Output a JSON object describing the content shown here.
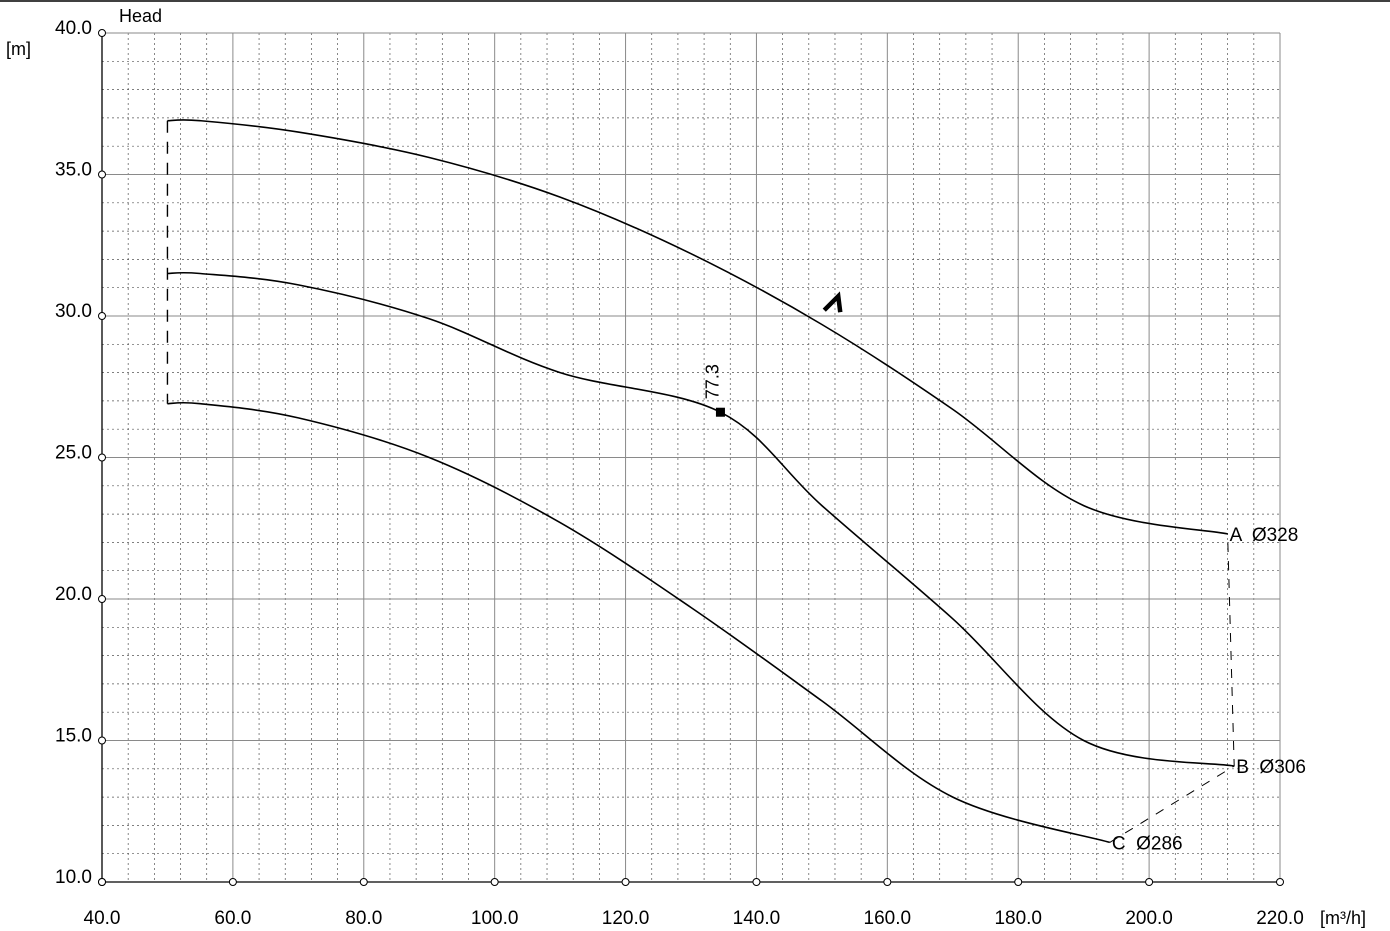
{
  "chart_data": {
    "type": "line",
    "title": "",
    "ylabel": "Head",
    "yunit": "[m]",
    "xunit": "[m³/h]",
    "xlim": [
      40,
      220
    ],
    "ylim": [
      10,
      40
    ],
    "x_ticks": [
      "40.0",
      "60.0",
      "80.0",
      "100.0",
      "120.0",
      "140.0",
      "160.0",
      "180.0",
      "200.0",
      "220.0"
    ],
    "y_ticks": [
      "10.0",
      "15.0",
      "20.0",
      "25.0",
      "30.0",
      "35.0",
      "40.0"
    ],
    "grid": true,
    "series": [
      {
        "name": "A",
        "label": "A  Ø328",
        "points": [
          [
            50,
            36.9
          ],
          [
            55,
            36.9
          ],
          [
            70,
            36.5
          ],
          [
            90,
            35.6
          ],
          [
            110,
            34.2
          ],
          [
            130,
            32.2
          ],
          [
            150,
            29.7
          ],
          [
            170,
            26.7
          ],
          [
            190,
            23.3
          ],
          [
            212,
            22.3
          ]
        ]
      },
      {
        "name": "B",
        "label": "B  Ø306",
        "points": [
          [
            50,
            31.5
          ],
          [
            55,
            31.5
          ],
          [
            70,
            31.1
          ],
          [
            90,
            29.9
          ],
          [
            110,
            28.0
          ],
          [
            134.5,
            26.6
          ],
          [
            150,
            23.3
          ],
          [
            170,
            19.3
          ],
          [
            190,
            15.0
          ],
          [
            213,
            14.1
          ]
        ]
      },
      {
        "name": "C",
        "label": "C  Ø286",
        "points": [
          [
            50,
            26.9
          ],
          [
            55,
            26.9
          ],
          [
            70,
            26.4
          ],
          [
            90,
            25.0
          ],
          [
            110,
            22.7
          ],
          [
            130,
            19.7
          ],
          [
            150,
            16.4
          ],
          [
            170,
            13.0
          ],
          [
            194,
            11.4
          ]
        ]
      }
    ],
    "operating_point": {
      "x": 134.5,
      "y": 26.6,
      "label": "77.3"
    },
    "arrow_marker": {
      "x": 152.5,
      "y": 30.7
    },
    "limit_lines": {
      "min_flow": {
        "x": 50,
        "y_from": 26.9,
        "y_to": 36.9
      },
      "end_of_curve": [
        [
          194,
          11.4
        ],
        [
          213,
          14.1
        ],
        [
          212,
          22.3
        ]
      ]
    }
  }
}
